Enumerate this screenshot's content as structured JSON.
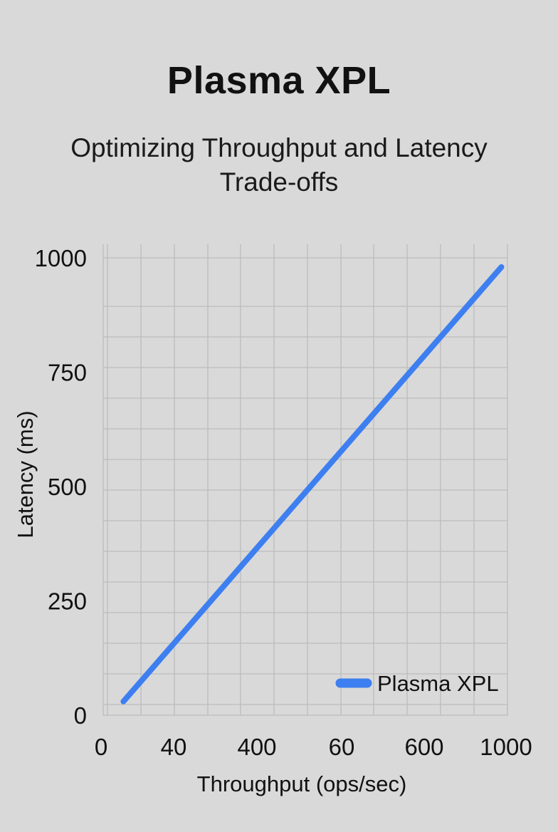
{
  "chart_data": {
    "type": "line",
    "title": "Plasma XPL",
    "subtitle": "Optimizing Throughput and Latency Trade-offs",
    "xlabel": "Throughput (ops/sec)",
    "ylabel": "Latency (ms)",
    "x_tick_labels": [
      "0",
      "40",
      "400",
      "60",
      "600",
      "1000"
    ],
    "y_tick_labels": [
      "0",
      "250",
      "500",
      "750",
      "1000"
    ],
    "y_tick_values": [
      0,
      250,
      500,
      750,
      1000
    ],
    "ylim": [
      0,
      1000
    ],
    "grid": true,
    "legend": "bottom-right",
    "line_color": "#3d7ff0",
    "series": [
      {
        "name": "Plasma XPL",
        "x_position_fraction": [
          0.05,
          0.985
        ],
        "values": [
          30,
          980
        ]
      }
    ]
  }
}
